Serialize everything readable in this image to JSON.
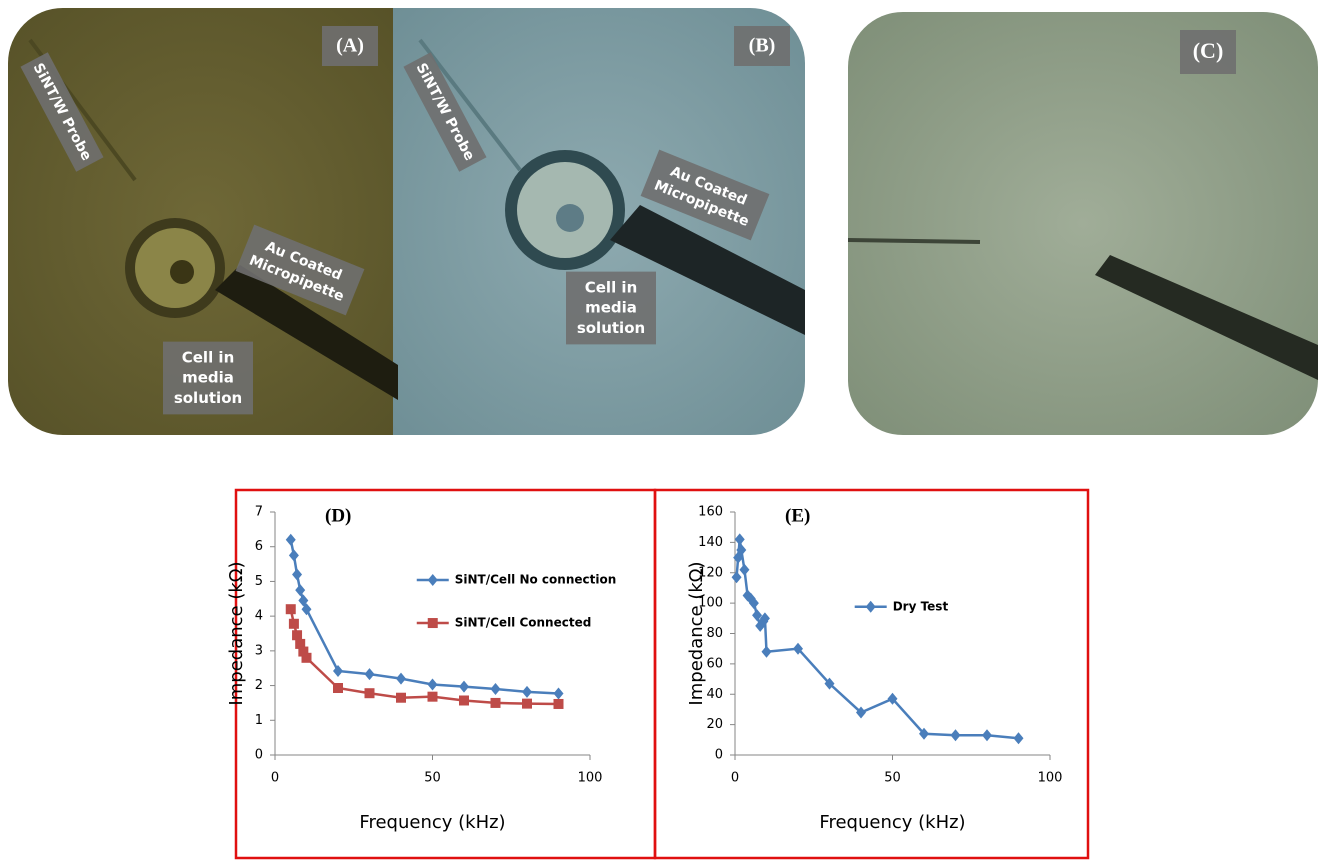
{
  "images": [
    {
      "label": "(A)",
      "annotations": [
        [
          "SiNT/W Probe"
        ],
        [
          "Au Coated",
          "Micropipette"
        ],
        [
          "Cell in",
          "media",
          "solution"
        ]
      ]
    },
    {
      "label": "(B)",
      "annotations": [
        [
          "SiNT/W Probe"
        ],
        [
          "Au Coated",
          "Micropipette"
        ],
        [
          "Cell in",
          "media",
          "solution"
        ]
      ]
    },
    {
      "label": "(C)",
      "annotations": []
    }
  ],
  "chart_data": [
    {
      "type": "line",
      "panel_label": "(D)",
      "xlabel": "Frequency (kHz)",
      "ylabel": "Impedance (kΩ)",
      "x": [
        5,
        6,
        7,
        8,
        9,
        10,
        20,
        30,
        40,
        50,
        60,
        70,
        80,
        90
      ],
      "series": [
        {
          "name": "SiNT/Cell  No connection",
          "color": "#4a7ebb",
          "marker": "diamond",
          "values": [
            6.2,
            5.75,
            5.2,
            4.75,
            4.45,
            4.2,
            2.42,
            2.33,
            2.2,
            2.03,
            1.97,
            1.9,
            1.82,
            1.77
          ]
        },
        {
          "name": "SiNT/Cell  Connected",
          "color": "#be4b48",
          "marker": "square",
          "values": [
            4.2,
            3.78,
            3.45,
            3.2,
            2.98,
            2.8,
            1.93,
            1.78,
            1.65,
            1.68,
            1.57,
            1.5,
            1.48,
            1.47
          ]
        }
      ],
      "xlim": [
        0,
        100
      ],
      "xticks": [
        0,
        50,
        100
      ],
      "ylim": [
        0,
        7
      ],
      "yticks": [
        0,
        1,
        2,
        3,
        4,
        5,
        6,
        7
      ],
      "legend": "center"
    },
    {
      "type": "line",
      "panel_label": "(E)",
      "xlabel": "Frequency (kHz)",
      "ylabel": "Impedance (kΩ)",
      "x": [
        0.5,
        1,
        1.5,
        2,
        3,
        4,
        5,
        6,
        7,
        8,
        9,
        9.5,
        10,
        20,
        30,
        40,
        50,
        60,
        70,
        80,
        90
      ],
      "series": [
        {
          "name": "Dry Test",
          "color": "#4a7ebb",
          "marker": "diamond",
          "values": [
            117,
            130,
            142,
            135,
            122,
            105,
            103,
            100,
            92,
            85,
            88,
            90,
            68,
            70,
            47,
            28,
            37,
            14,
            13,
            13,
            11
          ]
        }
      ],
      "xlim": [
        0,
        100
      ],
      "xticks": [
        0,
        50,
        100
      ],
      "ylim": [
        0,
        160
      ],
      "yticks": [
        0,
        20,
        40,
        60,
        80,
        100,
        120,
        140,
        160
      ],
      "legend": "center"
    }
  ]
}
